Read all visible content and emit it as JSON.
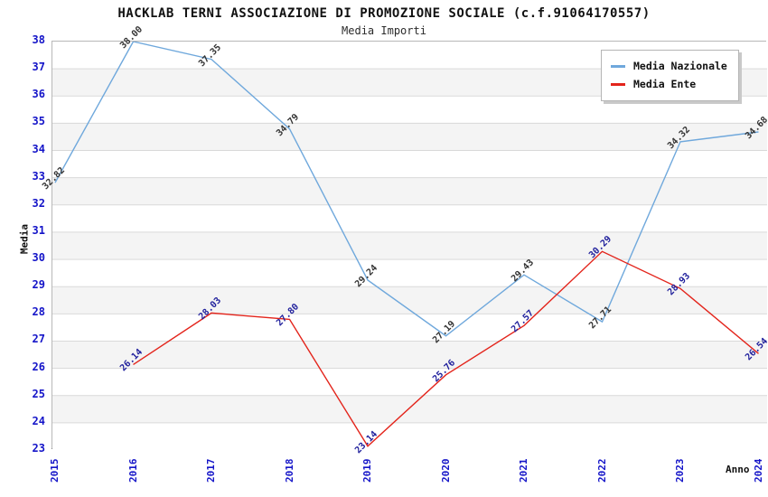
{
  "header": {
    "title": "HACKLAB TERNI ASSOCIAZIONE DI PROMOZIONE SOCIALE (c.f.91064170557)",
    "subtitle": "Media Importi"
  },
  "chart_data": {
    "type": "line",
    "title": "HACKLAB TERNI ASSOCIAZIONE DI PROMOZIONE SOCIALE (c.f.91064170557)",
    "subtitle": "Media Importi",
    "x": [
      "2015",
      "2016",
      "2017",
      "2018",
      "2019",
      "2020",
      "2021",
      "2022",
      "2023",
      "2024"
    ],
    "series": [
      {
        "name": "Media Nazionale",
        "color": "#6FA8DC",
        "label_color": "#333333",
        "values": [
          32.82,
          38.0,
          37.35,
          34.79,
          29.24,
          27.19,
          29.43,
          27.71,
          34.32,
          34.68
        ]
      },
      {
        "name": "Media Ente",
        "color": "#E3241B",
        "label_color": "#1F1F9C",
        "values": [
          null,
          26.14,
          28.03,
          27.8,
          23.14,
          25.76,
          27.57,
          30.29,
          28.93,
          26.54
        ]
      }
    ],
    "xlabel": "Anno",
    "ylabel": "Media",
    "ylim": [
      23,
      38
    ],
    "ytick_step": 1,
    "grid": true,
    "gridline_color": "#d9d9d9",
    "band_colors": [
      "#ffffff",
      "#f4f4f4"
    ],
    "tick_label_color": "#1414c8",
    "legend_position": "top-right"
  }
}
